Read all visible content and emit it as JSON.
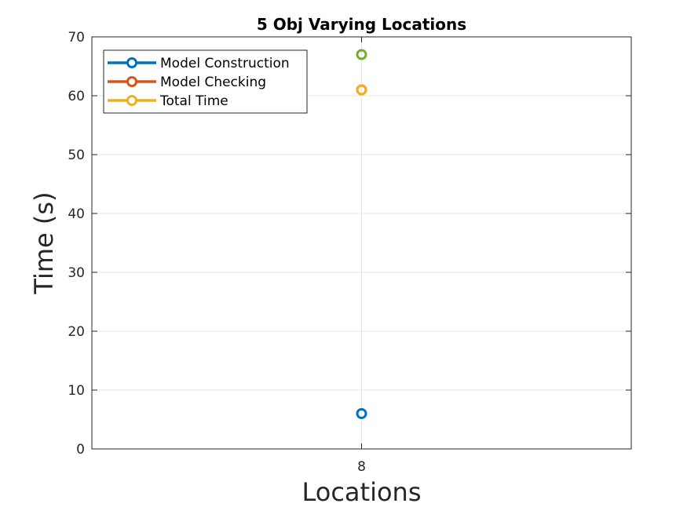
{
  "chart_data": {
    "type": "scatter",
    "title": "5 Obj Varying Locations",
    "xlabel": "Locations",
    "ylabel": "Time (s)",
    "x_ticks": [
      "8"
    ],
    "ylim": [
      0,
      70
    ],
    "y_ticks": [
      0,
      10,
      20,
      30,
      40,
      50,
      60,
      70
    ],
    "grid": true,
    "legend_position": "top-left",
    "series": [
      {
        "name": "Model Construction",
        "color": "#0072BD",
        "points": [
          {
            "x": "8",
            "y": 6
          }
        ]
      },
      {
        "name": "Model Checking",
        "color": "#D95319",
        "points": [
          {
            "x": "8",
            "y": 61
          }
        ]
      },
      {
        "name": "Total Time",
        "color": "#EDB120",
        "points": [
          {
            "x": "8",
            "y": 61
          }
        ]
      },
      {
        "color": "#77AC30",
        "points": [
          {
            "x": "8",
            "y": 67
          }
        ]
      }
    ]
  }
}
